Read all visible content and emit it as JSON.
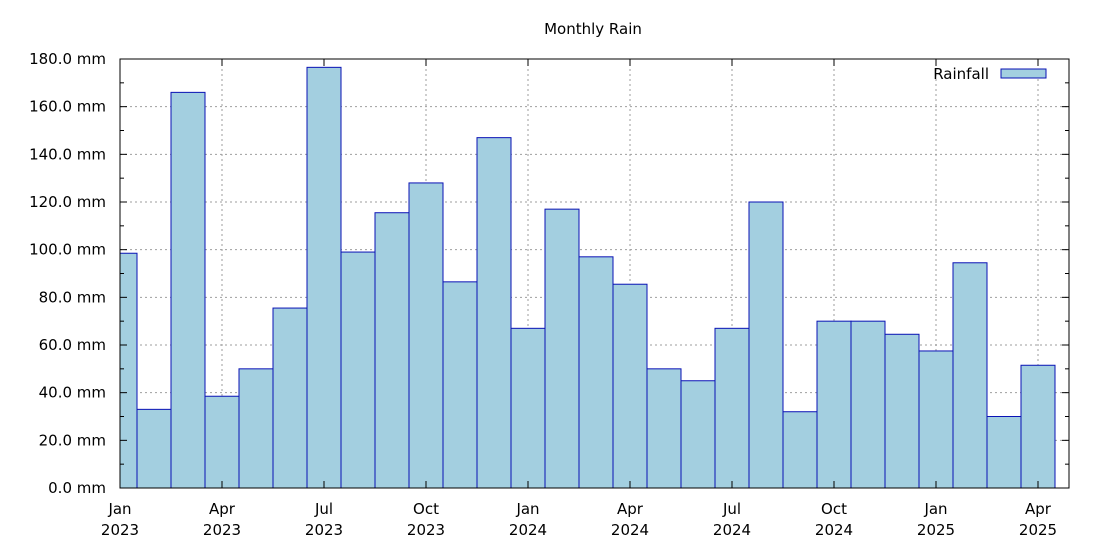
{
  "chart_data": {
    "type": "bar",
    "title": "Monthly Rain",
    "xlabel": "",
    "ylabel": "",
    "legend": {
      "placement": "top-right",
      "entries": [
        "Rainfall"
      ]
    },
    "grid": true,
    "ylim": [
      0,
      180
    ],
    "y_ticks": [
      "0.0 mm",
      "20.0 mm",
      "40.0 mm",
      "60.0 mm",
      "80.0 mm",
      "100.0 mm",
      "120.0 mm",
      "140.0 mm",
      "160.0 mm",
      "180.0 mm"
    ],
    "x_ticks": [
      {
        "month_index": 0,
        "line1": "Jan",
        "line2": "2023"
      },
      {
        "month_index": 3,
        "line1": "Apr",
        "line2": "2023"
      },
      {
        "month_index": 6,
        "line1": "Jul",
        "line2": "2023"
      },
      {
        "month_index": 9,
        "line1": "Oct",
        "line2": "2023"
      },
      {
        "month_index": 12,
        "line1": "Jan",
        "line2": "2024"
      },
      {
        "month_index": 15,
        "line1": "Apr",
        "line2": "2024"
      },
      {
        "month_index": 18,
        "line1": "Jul",
        "line2": "2024"
      },
      {
        "month_index": 21,
        "line1": "Oct",
        "line2": "2024"
      },
      {
        "month_index": 24,
        "line1": "Jan",
        "line2": "2025"
      },
      {
        "month_index": 27,
        "line1": "Apr",
        "line2": "2025"
      }
    ],
    "categories": [
      "2023-01",
      "2023-02",
      "2023-03",
      "2023-04",
      "2023-05",
      "2023-06",
      "2023-07",
      "2023-08",
      "2023-09",
      "2023-10",
      "2023-11",
      "2023-12",
      "2024-01",
      "2024-02",
      "2024-03",
      "2024-04",
      "2024-05",
      "2024-06",
      "2024-07",
      "2024-08",
      "2024-09",
      "2024-10",
      "2024-11",
      "2024-12",
      "2025-01",
      "2025-02",
      "2025-03",
      "2025-04"
    ],
    "series": [
      {
        "name": "Rainfall",
        "values": [
          98.5,
          33.0,
          166.0,
          38.5,
          50.0,
          75.5,
          176.5,
          99.0,
          115.5,
          128.0,
          86.5,
          147.0,
          67.0,
          117.0,
          97.0,
          85.5,
          50.0,
          45.0,
          67.0,
          120.0,
          32.0,
          70.0,
          70.0,
          64.5,
          57.5,
          94.5,
          30.0,
          51.5
        ]
      }
    ],
    "colors": {
      "bar_fill": "#a3cfe0",
      "bar_stroke": "#0a12b5",
      "grid": "#9e9e9e",
      "axis": "#000000"
    }
  }
}
